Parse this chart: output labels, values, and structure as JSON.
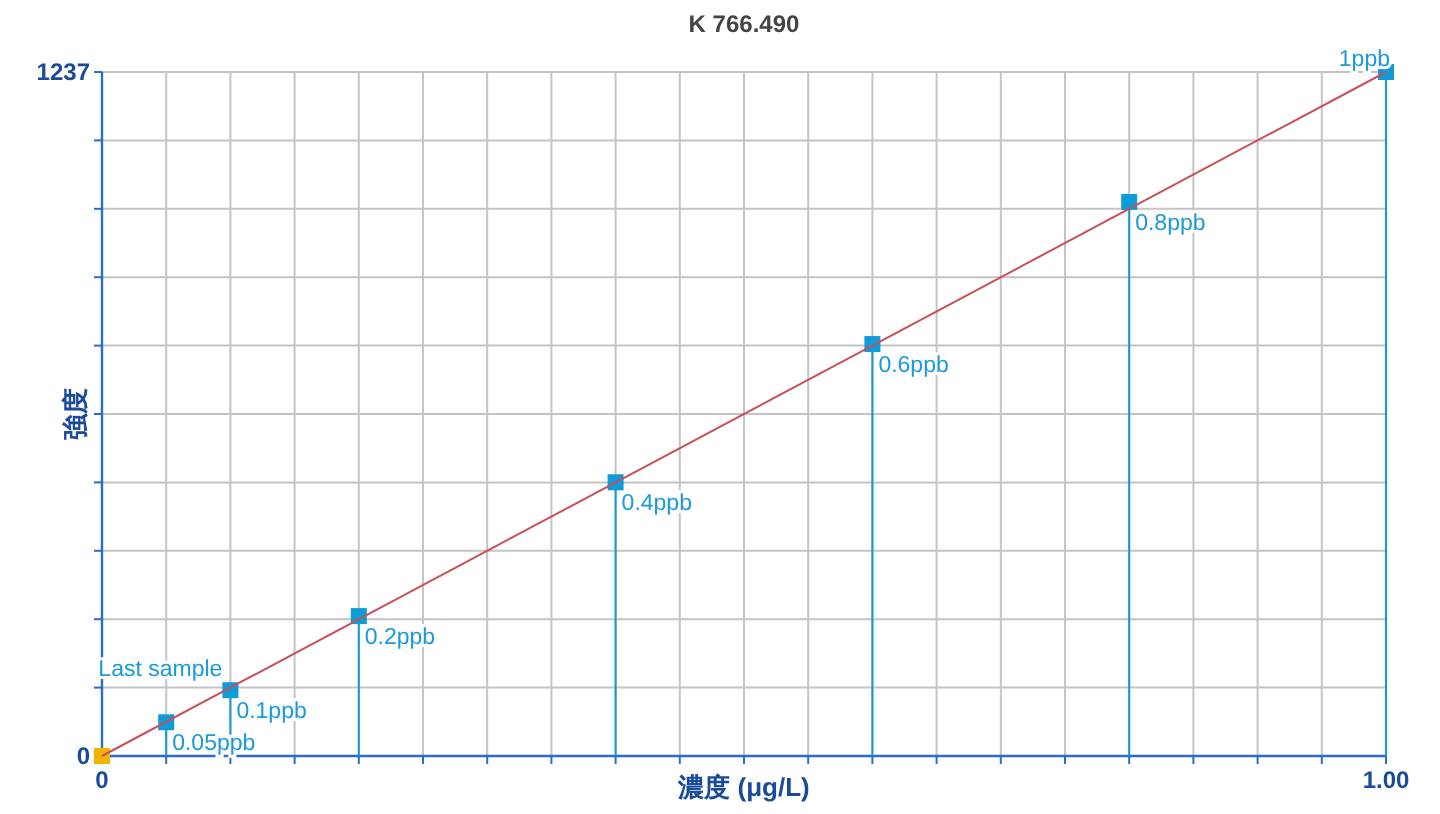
{
  "chart_data": {
    "type": "lollipop",
    "title": "K 766.490",
    "xlabel": "濃度 (μg/L)",
    "ylabel": "強度",
    "xlim": [
      0,
      1
    ],
    "ylim": [
      0,
      1237
    ],
    "xticks": [
      0,
      {
        "value": 0.05,
        "label": null
      },
      {
        "value": 0.1,
        "label": null
      },
      {
        "value": 0.15,
        "label": null
      },
      {
        "value": 0.2,
        "label": null
      },
      {
        "value": 0.25,
        "label": null
      },
      {
        "value": 0.3,
        "label": null
      },
      {
        "value": 0.35,
        "label": null
      },
      {
        "value": 0.4,
        "label": null
      },
      {
        "value": 0.45,
        "label": null
      },
      {
        "value": 0.5,
        "label": null
      },
      {
        "value": 0.55,
        "label": null
      },
      {
        "value": 0.6,
        "label": null
      },
      {
        "value": 0.65,
        "label": null
      },
      {
        "value": 0.7,
        "label": null
      },
      {
        "value": 0.75,
        "label": null
      },
      {
        "value": 0.8,
        "label": null
      },
      {
        "value": 0.85,
        "label": null
      },
      {
        "value": 0.9,
        "label": null
      },
      {
        "value": 0.95,
        "label": null
      },
      {
        "value": 1,
        "label": "1.00"
      }
    ],
    "yticks": [
      0,
      {
        "value": 123.7,
        "label": null
      },
      {
        "value": 247.4,
        "label": null
      },
      {
        "value": 371.1,
        "label": null
      },
      {
        "value": 494.8,
        "label": null
      },
      {
        "value": 618.5,
        "label": null
      },
      {
        "value": 742.2,
        "label": null
      },
      {
        "value": 865.9,
        "label": null
      },
      {
        "value": 989.6,
        "label": null
      },
      {
        "value": 1113.3,
        "label": null
      },
      1237
    ],
    "grid": true,
    "marker": "square",
    "series": [
      {
        "color": "#0f9ad8",
        "x": [
          0.05,
          0.1,
          0.2,
          0.4,
          0.6,
          0.8,
          1
        ],
        "values": [
          61,
          119,
          253,
          495,
          745,
          1002,
          1237
        ]
      },
      {
        "type": "scatter",
        "color": "#f0b400",
        "x": [
          0
        ],
        "values": [
          0
        ]
      },
      {
        "type": "line",
        "marker": "none",
        "color": "#c8505a",
        "x": [
          0,
          1
        ],
        "values": [
          0,
          1237
        ]
      }
    ],
    "annotations": [
      {
        "text": "0.05ppb",
        "x": 0.05,
        "y": 61
      },
      {
        "text": "0.1ppb",
        "x": 0.1,
        "y": 119
      },
      {
        "text": "0.2ppb",
        "x": 0.2,
        "y": 253
      },
      {
        "text": "0.4ppb",
        "x": 0.4,
        "y": 495
      },
      {
        "text": "0.6ppb",
        "x": 0.6,
        "y": 745
      },
      {
        "text": "0.8ppb",
        "x": 0.8,
        "y": 1002
      },
      {
        "text": "1ppb",
        "x": 1,
        "y": 1237
      },
      {
        "text": "Last sample",
        "x": 0.1,
        "y": 119
      }
    ]
  }
}
